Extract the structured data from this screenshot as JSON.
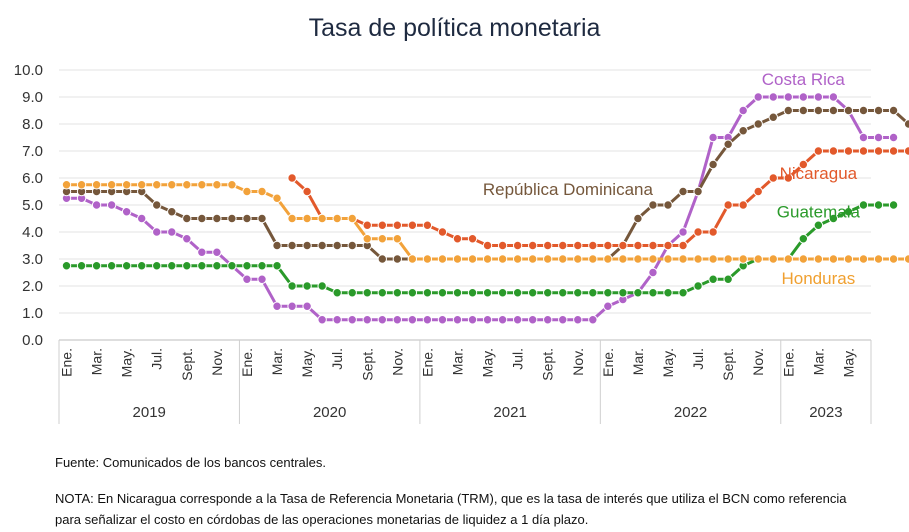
{
  "chart_data": {
    "type": "line",
    "title": "Tasa de política monetaria",
    "ylim": [
      0,
      10
    ],
    "yticks": [
      "0.0",
      "1.0",
      "2.0",
      "3.0",
      "4.0",
      "5.0",
      "6.0",
      "7.0",
      "8.0",
      "9.0",
      "10.0"
    ],
    "grid": true,
    "legend": "inline labels at line ends",
    "month_ticks": [
      "Ene.",
      "Mar.",
      "May.",
      "Jul.",
      "Sept.",
      "Nov."
    ],
    "years": [
      "2019",
      "2020",
      "2021",
      "2022",
      "2023"
    ],
    "x_start": "2019-01",
    "x_end": "2023-06",
    "series": [
      {
        "name": "Costa Rica",
        "color": "#b062c8",
        "label_color": "#b062c8",
        "label_row": "2023-02",
        "values": [
          5.25,
          5.25,
          5.0,
          5.0,
          4.75,
          4.5,
          4.0,
          4.0,
          3.75,
          3.25,
          3.25,
          2.75,
          2.25,
          2.25,
          1.25,
          1.25,
          1.25,
          0.75,
          0.75,
          0.75,
          0.75,
          0.75,
          0.75,
          0.75,
          0.75,
          0.75,
          0.75,
          0.75,
          0.75,
          0.75,
          0.75,
          0.75,
          0.75,
          0.75,
          0.75,
          0.75,
          1.25,
          1.5,
          1.75,
          2.5,
          3.5,
          4.0,
          5.5,
          7.5,
          7.5,
          8.5,
          9.0,
          9.0,
          9.0,
          9.0,
          9.0,
          9.0,
          8.5,
          7.5,
          7.5,
          7.5
        ]
      },
      {
        "name": "República Dominicana",
        "color": "#75573b",
        "label_color": "#75573b",
        "label_row": "2022-04",
        "values": [
          5.5,
          5.5,
          5.5,
          5.5,
          5.5,
          5.5,
          5.0,
          4.75,
          4.5,
          4.5,
          4.5,
          4.5,
          4.5,
          4.5,
          3.5,
          3.5,
          3.5,
          3.5,
          3.5,
          3.5,
          3.5,
          3.0,
          3.0,
          3.0,
          3.0,
          3.0,
          3.0,
          3.0,
          3.0,
          3.0,
          3.0,
          3.0,
          3.0,
          3.0,
          3.0,
          3.0,
          3.0,
          3.5,
          4.5,
          5.0,
          5.0,
          5.5,
          5.5,
          6.5,
          7.25,
          7.75,
          8.0,
          8.25,
          8.5,
          8.5,
          8.5,
          8.5,
          8.5,
          8.5,
          8.5,
          8.5,
          8.0
        ]
      },
      {
        "name": "Nicaragua",
        "color": "#e2592b",
        "label_color": "#e2592b",
        "label_row": "2023-03",
        "values": [
          null,
          null,
          null,
          null,
          null,
          null,
          null,
          null,
          null,
          null,
          null,
          null,
          null,
          null,
          null,
          6.0,
          5.5,
          4.5,
          4.5,
          4.5,
          4.25,
          4.25,
          4.25,
          4.25,
          4.25,
          4.0,
          3.75,
          3.75,
          3.5,
          3.5,
          3.5,
          3.5,
          3.5,
          3.5,
          3.5,
          3.5,
          3.5,
          3.5,
          3.5,
          3.5,
          3.5,
          3.5,
          4.0,
          4.0,
          5.0,
          5.0,
          5.5,
          6.0,
          6.0,
          6.5,
          7.0,
          7.0,
          7.0,
          7.0,
          7.0,
          7.0,
          7.0
        ]
      },
      {
        "name": "Guatemala",
        "color": "#2a9a2a",
        "label_color": "#2a9a2a",
        "label_row": "2023-03",
        "values": [
          2.75,
          2.75,
          2.75,
          2.75,
          2.75,
          2.75,
          2.75,
          2.75,
          2.75,
          2.75,
          2.75,
          2.75,
          2.75,
          2.75,
          2.75,
          2.0,
          2.0,
          2.0,
          1.75,
          1.75,
          1.75,
          1.75,
          1.75,
          1.75,
          1.75,
          1.75,
          1.75,
          1.75,
          1.75,
          1.75,
          1.75,
          1.75,
          1.75,
          1.75,
          1.75,
          1.75,
          1.75,
          1.75,
          1.75,
          1.75,
          1.75,
          1.75,
          2.0,
          2.25,
          2.25,
          2.75,
          3.0,
          3.0,
          3.0,
          3.75,
          4.25,
          4.5,
          4.75,
          5.0,
          5.0,
          5.0
        ]
      },
      {
        "name": "Honduras",
        "color": "#f2a23a",
        "label_color": "#f0a030",
        "label_row": "2023-03",
        "values": [
          5.75,
          5.75,
          5.75,
          5.75,
          5.75,
          5.75,
          5.75,
          5.75,
          5.75,
          5.75,
          5.75,
          5.75,
          5.5,
          5.5,
          5.25,
          4.5,
          4.5,
          4.5,
          4.5,
          4.5,
          3.75,
          3.75,
          3.75,
          3.0,
          3.0,
          3.0,
          3.0,
          3.0,
          3.0,
          3.0,
          3.0,
          3.0,
          3.0,
          3.0,
          3.0,
          3.0,
          3.0,
          3.0,
          3.0,
          3.0,
          3.0,
          3.0,
          3.0,
          3.0,
          3.0,
          3.0,
          3.0,
          3.0,
          3.0,
          3.0,
          3.0,
          3.0,
          3.0,
          3.0,
          3.0,
          3.0,
          3.0
        ]
      }
    ]
  },
  "source": "Fuente: Comunicados de los bancos centrales.",
  "footnote": "NOTA: En Nicaragua corresponde a la Tasa de Referencia Monetaria (TRM), que es la tasa de interés que utiliza el BCN como referencia para señalizar el costo en córdobas de las operaciones monetarias de liquidez a 1 día plazo."
}
